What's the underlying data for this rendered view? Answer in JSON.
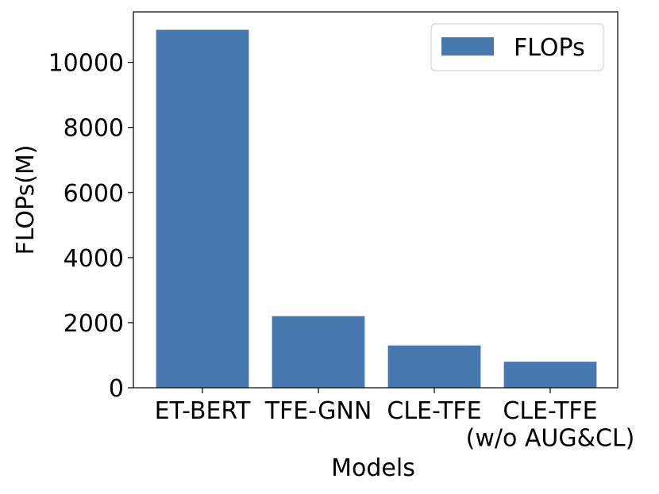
{
  "chart_data": {
    "type": "bar",
    "x_label": "Models",
    "y_label": "FLOPs(M)",
    "categories": [
      "ET-BERT",
      "TFE-GNN",
      "CLE-TFE",
      "CLE-TFE\n(w/o AUG&CL)"
    ],
    "series": [
      {
        "name": "FLOPs",
        "color": "#4878b0",
        "values": [
          11000,
          2200,
          1300,
          800
        ]
      }
    ],
    "ylim": [
      0,
      11550
    ],
    "yticks": [
      0,
      2000,
      4000,
      6000,
      8000,
      10000
    ],
    "legend": "upper right"
  }
}
